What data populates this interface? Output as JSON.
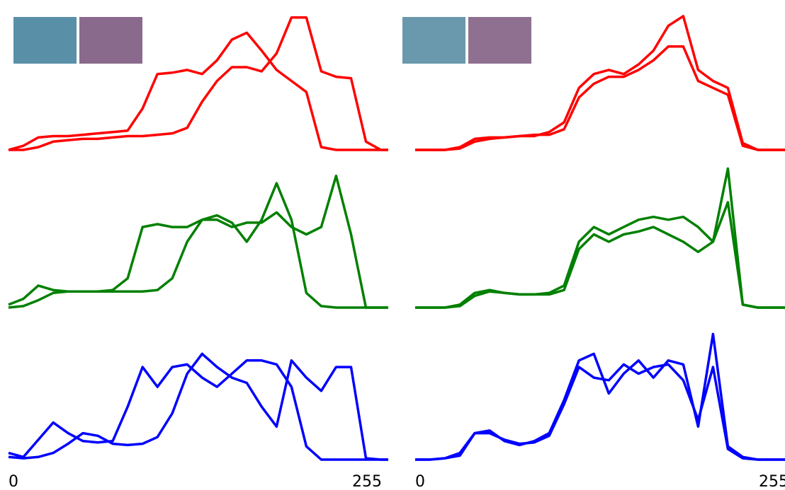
{
  "chart_data": [
    {
      "type": "line",
      "xlim": [
        0,
        255
      ],
      "ylim": [
        0,
        1
      ],
      "x": [
        0,
        10,
        20,
        30,
        40,
        50,
        60,
        70,
        80,
        90,
        100,
        110,
        120,
        130,
        140,
        150,
        160,
        170,
        180,
        190,
        200,
        210,
        220,
        230,
        240,
        250,
        255
      ],
      "series": [
        {
          "color": "#ff0000",
          "values": [
            0,
            0.03,
            0.09,
            0.1,
            0.1,
            0.11,
            0.12,
            0.13,
            0.14,
            0.3,
            0.55,
            0.56,
            0.58,
            0.55,
            0.65,
            0.8,
            0.85,
            0.72,
            0.58,
            0.5,
            0.42,
            0.02,
            0,
            0,
            0,
            0,
            0
          ]
        },
        {
          "color": "#ff0000",
          "values": [
            0,
            0,
            0.02,
            0.06,
            0.07,
            0.08,
            0.08,
            0.09,
            0.1,
            0.1,
            0.11,
            0.12,
            0.16,
            0.35,
            0.5,
            0.6,
            0.6,
            0.57,
            0.7,
            0.96,
            0.96,
            0.57,
            0.53,
            0.52,
            0.06,
            0,
            0
          ]
        }
      ]
    },
    {
      "type": "line",
      "xlim": [
        0,
        255
      ],
      "ylim": [
        0,
        1
      ],
      "x": [
        0,
        10,
        20,
        30,
        40,
        50,
        60,
        70,
        80,
        90,
        100,
        110,
        120,
        130,
        140,
        150,
        160,
        170,
        180,
        190,
        200,
        210,
        220,
        230,
        240,
        250,
        255
      ],
      "series": [
        {
          "color": "#008000",
          "values": [
            0.02,
            0.06,
            0.15,
            0.12,
            0.11,
            0.11,
            0.11,
            0.12,
            0.2,
            0.55,
            0.57,
            0.55,
            0.55,
            0.6,
            0.63,
            0.58,
            0.45,
            0.6,
            0.85,
            0.6,
            0.1,
            0.01,
            0,
            0,
            0,
            0,
            0
          ]
        },
        {
          "color": "#008000",
          "values": [
            0,
            0.01,
            0.05,
            0.1,
            0.11,
            0.11,
            0.11,
            0.11,
            0.11,
            0.11,
            0.12,
            0.2,
            0.45,
            0.6,
            0.6,
            0.55,
            0.58,
            0.58,
            0.65,
            0.55,
            0.5,
            0.55,
            0.9,
            0.5,
            0,
            0,
            0
          ]
        }
      ]
    },
    {
      "type": "line",
      "xlim": [
        0,
        255
      ],
      "ylim": [
        0,
        1
      ],
      "xticks": [
        0,
        255
      ],
      "x": [
        0,
        10,
        20,
        30,
        40,
        50,
        60,
        70,
        80,
        90,
        100,
        110,
        120,
        130,
        140,
        150,
        160,
        170,
        180,
        190,
        200,
        210,
        220,
        230,
        240,
        250,
        255
      ],
      "series": [
        {
          "color": "#0000ff",
          "values": [
            0.05,
            0.02,
            0.15,
            0.28,
            0.2,
            0.14,
            0.13,
            0.14,
            0.4,
            0.7,
            0.55,
            0.7,
            0.72,
            0.62,
            0.55,
            0.65,
            0.75,
            0.75,
            0.72,
            0.55,
            0.1,
            0,
            0,
            0,
            0,
            0,
            0
          ]
        },
        {
          "color": "#0000ff",
          "values": [
            0.02,
            0.01,
            0.02,
            0.05,
            0.12,
            0.2,
            0.18,
            0.12,
            0.11,
            0.12,
            0.17,
            0.35,
            0.65,
            0.8,
            0.7,
            0.62,
            0.58,
            0.4,
            0.25,
            0.75,
            0.62,
            0.52,
            0.7,
            0.7,
            0.01,
            0,
            0
          ]
        }
      ]
    },
    {
      "type": "line",
      "xlim": [
        0,
        255
      ],
      "ylim": [
        0,
        1
      ],
      "x": [
        0,
        10,
        20,
        30,
        40,
        50,
        60,
        70,
        80,
        90,
        100,
        110,
        120,
        130,
        140,
        150,
        160,
        170,
        180,
        190,
        200,
        210,
        220,
        230,
        240,
        250,
        255
      ],
      "series": [
        {
          "color": "#ff0000",
          "values": [
            0,
            0,
            0,
            0.02,
            0.08,
            0.09,
            0.09,
            0.1,
            0.1,
            0.13,
            0.2,
            0.45,
            0.55,
            0.58,
            0.55,
            0.62,
            0.72,
            0.9,
            0.97,
            0.58,
            0.5,
            0.45,
            0.05,
            0,
            0,
            0,
            0
          ]
        },
        {
          "color": "#ff0000",
          "values": [
            0,
            0,
            0,
            0.01,
            0.06,
            0.08,
            0.09,
            0.1,
            0.11,
            0.11,
            0.15,
            0.38,
            0.48,
            0.53,
            0.53,
            0.58,
            0.65,
            0.75,
            0.75,
            0.5,
            0.45,
            0.4,
            0.03,
            0,
            0,
            0,
            0
          ]
        }
      ]
    },
    {
      "type": "line",
      "xlim": [
        0,
        255
      ],
      "ylim": [
        0,
        1
      ],
      "x": [
        0,
        10,
        20,
        30,
        40,
        50,
        60,
        70,
        80,
        90,
        100,
        110,
        120,
        130,
        140,
        150,
        160,
        170,
        180,
        190,
        200,
        210,
        220,
        230,
        240,
        250,
        255
      ],
      "series": [
        {
          "color": "#008000",
          "values": [
            0,
            0,
            0,
            0.02,
            0.1,
            0.12,
            0.1,
            0.09,
            0.09,
            0.1,
            0.15,
            0.45,
            0.55,
            0.5,
            0.55,
            0.6,
            0.62,
            0.6,
            0.62,
            0.55,
            0.45,
            0.95,
            0.02,
            0,
            0,
            0,
            0
          ]
        },
        {
          "color": "#008000",
          "values": [
            0,
            0,
            0,
            0.01,
            0.08,
            0.11,
            0.1,
            0.09,
            0.09,
            0.09,
            0.12,
            0.4,
            0.5,
            0.45,
            0.5,
            0.52,
            0.55,
            0.5,
            0.45,
            0.38,
            0.45,
            0.72,
            0.02,
            0,
            0,
            0,
            0
          ]
        }
      ]
    },
    {
      "type": "line",
      "xlim": [
        0,
        255
      ],
      "ylim": [
        0,
        1
      ],
      "xticks": [
        0,
        255
      ],
      "x": [
        0,
        10,
        20,
        30,
        40,
        50,
        60,
        70,
        80,
        90,
        100,
        110,
        120,
        130,
        140,
        150,
        160,
        170,
        180,
        190,
        200,
        210,
        220,
        230,
        240,
        250,
        255
      ],
      "series": [
        {
          "color": "#0000ff",
          "values": [
            0,
            0,
            0.01,
            0.05,
            0.2,
            0.22,
            0.14,
            0.11,
            0.14,
            0.2,
            0.45,
            0.75,
            0.8,
            0.5,
            0.65,
            0.75,
            0.62,
            0.75,
            0.72,
            0.25,
            0.95,
            0.1,
            0.02,
            0,
            0,
            0,
            0
          ]
        },
        {
          "color": "#0000ff",
          "values": [
            0,
            0,
            0.01,
            0.03,
            0.2,
            0.2,
            0.15,
            0.12,
            0.13,
            0.18,
            0.42,
            0.7,
            0.62,
            0.6,
            0.72,
            0.65,
            0.7,
            0.72,
            0.6,
            0.3,
            0.7,
            0.08,
            0.01,
            0,
            0,
            0,
            0
          ]
        }
      ]
    }
  ]
}
